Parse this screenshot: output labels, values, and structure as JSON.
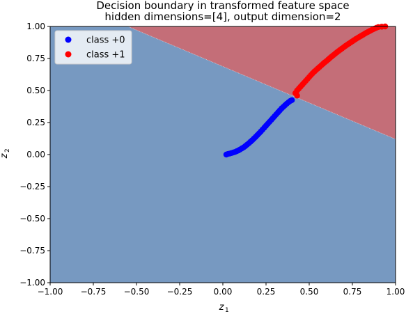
{
  "chart_data": {
    "type": "scatter",
    "title_lines": [
      "Decision boundary in transformed feature space",
      "hidden dimensions=[4], output dimension=2"
    ],
    "xlabel_main": "z",
    "xlabel_sub": "1",
    "ylabel_main": "z",
    "ylabel_sub": "2",
    "xlim": [
      -1.0,
      1.0
    ],
    "ylim": [
      -1.0,
      1.0
    ],
    "xticks": [
      -1.0,
      -0.75,
      -0.5,
      -0.25,
      0.0,
      0.25,
      0.5,
      0.75,
      1.0
    ],
    "yticks": [
      -1.0,
      -0.75,
      -0.5,
      -0.25,
      0.0,
      0.25,
      0.5,
      0.75,
      1.0
    ],
    "xtick_labels": [
      "−1.00",
      "−0.75",
      "−0.50",
      "−0.25",
      "0.00",
      "0.25",
      "0.50",
      "0.75",
      "1.00"
    ],
    "ytick_labels": [
      "−1.00",
      "−0.75",
      "−0.50",
      "−0.25",
      "0.00",
      "0.25",
      "0.50",
      "0.75",
      "1.00"
    ],
    "legend_position": "upper-left",
    "regions": {
      "class0_color": "#7799c1",
      "class1_color": "#c46e78",
      "boundary_line": {
        "x1": -0.55,
        "y1": 1.0,
        "x2": 1.0,
        "y2": 0.12
      }
    },
    "series": [
      {
        "name": "class +0",
        "color": "#0000ff",
        "points": [
          [
            0.02,
            0.0
          ],
          [
            0.03,
            0.005
          ],
          [
            0.04,
            0.008
          ],
          [
            0.05,
            0.012
          ],
          [
            0.06,
            0.016
          ],
          [
            0.07,
            0.02
          ],
          [
            0.08,
            0.026
          ],
          [
            0.09,
            0.032
          ],
          [
            0.1,
            0.04
          ],
          [
            0.11,
            0.048
          ],
          [
            0.12,
            0.056
          ],
          [
            0.13,
            0.066
          ],
          [
            0.14,
            0.077
          ],
          [
            0.15,
            0.088
          ],
          [
            0.16,
            0.1
          ],
          [
            0.17,
            0.112
          ],
          [
            0.18,
            0.125
          ],
          [
            0.19,
            0.138
          ],
          [
            0.2,
            0.152
          ],
          [
            0.21,
            0.166
          ],
          [
            0.22,
            0.18
          ],
          [
            0.23,
            0.195
          ],
          [
            0.24,
            0.21
          ],
          [
            0.25,
            0.225
          ],
          [
            0.26,
            0.24
          ],
          [
            0.27,
            0.255
          ],
          [
            0.28,
            0.27
          ],
          [
            0.29,
            0.285
          ],
          [
            0.3,
            0.3
          ],
          [
            0.31,
            0.315
          ],
          [
            0.32,
            0.33
          ],
          [
            0.33,
            0.345
          ],
          [
            0.34,
            0.36
          ],
          [
            0.35,
            0.372
          ],
          [
            0.36,
            0.385
          ],
          [
            0.37,
            0.397
          ],
          [
            0.38,
            0.408
          ],
          [
            0.39,
            0.418
          ],
          [
            0.4,
            0.425
          ]
        ]
      },
      {
        "name": "class +1",
        "color": "#ff0000",
        "points": [
          [
            0.43,
            0.46
          ],
          [
            0.42,
            0.48
          ],
          [
            0.43,
            0.5
          ],
          [
            0.44,
            0.515
          ],
          [
            0.45,
            0.53
          ],
          [
            0.46,
            0.545
          ],
          [
            0.47,
            0.56
          ],
          [
            0.48,
            0.575
          ],
          [
            0.49,
            0.59
          ],
          [
            0.5,
            0.605
          ],
          [
            0.51,
            0.62
          ],
          [
            0.52,
            0.635
          ],
          [
            0.53,
            0.648
          ],
          [
            0.54,
            0.66
          ],
          [
            0.55,
            0.672
          ],
          [
            0.56,
            0.684
          ],
          [
            0.57,
            0.696
          ],
          [
            0.58,
            0.708
          ],
          [
            0.59,
            0.72
          ],
          [
            0.6,
            0.73
          ],
          [
            0.61,
            0.742
          ],
          [
            0.62,
            0.754
          ],
          [
            0.63,
            0.765
          ],
          [
            0.64,
            0.776
          ],
          [
            0.65,
            0.787
          ],
          [
            0.66,
            0.798
          ],
          [
            0.67,
            0.808
          ],
          [
            0.68,
            0.818
          ],
          [
            0.69,
            0.828
          ],
          [
            0.7,
            0.838
          ],
          [
            0.71,
            0.848
          ],
          [
            0.72,
            0.857
          ],
          [
            0.73,
            0.866
          ],
          [
            0.74,
            0.875
          ],
          [
            0.75,
            0.884
          ],
          [
            0.76,
            0.893
          ],
          [
            0.77,
            0.902
          ],
          [
            0.78,
            0.91
          ],
          [
            0.79,
            0.918
          ],
          [
            0.8,
            0.926
          ],
          [
            0.81,
            0.934
          ],
          [
            0.82,
            0.942
          ],
          [
            0.83,
            0.95
          ],
          [
            0.84,
            0.957
          ],
          [
            0.85,
            0.964
          ],
          [
            0.86,
            0.971
          ],
          [
            0.87,
            0.978
          ],
          [
            0.88,
            0.984
          ],
          [
            0.89,
            0.99
          ],
          [
            0.9,
            0.995
          ],
          [
            0.92,
            0.998
          ],
          [
            0.94,
            1.0
          ]
        ]
      }
    ]
  }
}
